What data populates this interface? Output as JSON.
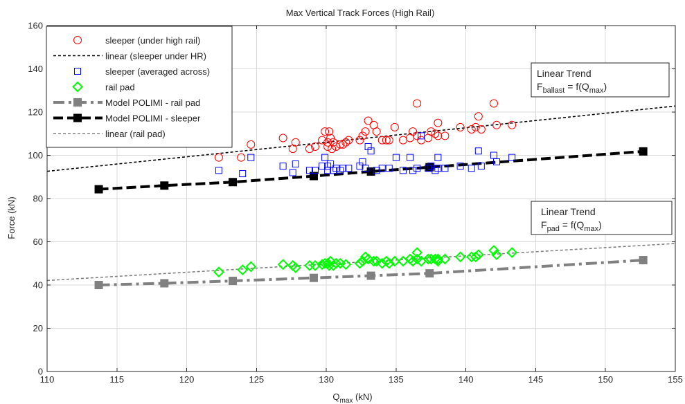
{
  "chart_data": {
    "type": "scatter",
    "title": "Max Vertical Track Forces (High Rail)",
    "xlabel": {
      "base": "Q",
      "sub": "max",
      "rest": " (kN)"
    },
    "ylabel": "Force (kN)",
    "xlim": [
      110,
      155
    ],
    "ylim": [
      0,
      160
    ],
    "xticks": [
      110,
      115,
      120,
      125,
      130,
      135,
      140,
      145,
      150,
      155
    ],
    "yticks": [
      0,
      20,
      40,
      60,
      80,
      100,
      120,
      140,
      160
    ],
    "grid": true,
    "legend_position": "top-left",
    "series": [
      {
        "name": "sleeper (under high rail)",
        "kind": "markers",
        "marker": "circle",
        "color": "#ff0000",
        "points": [
          [
            122.3,
            99
          ],
          [
            123.9,
            99
          ],
          [
            124.6,
            105
          ],
          [
            126.9,
            108
          ],
          [
            127.6,
            103
          ],
          [
            127.8,
            106
          ],
          [
            128.8,
            103
          ],
          [
            129.2,
            104
          ],
          [
            129.7,
            107
          ],
          [
            129.9,
            111
          ],
          [
            130.1,
            104
          ],
          [
            130.1,
            106
          ],
          [
            130.2,
            111
          ],
          [
            130.3,
            108
          ],
          [
            130.4,
            103
          ],
          [
            130.5,
            106
          ],
          [
            130.7,
            104
          ],
          [
            131,
            105
          ],
          [
            131.2,
            105
          ],
          [
            131.4,
            106
          ],
          [
            131.6,
            107
          ],
          [
            132.4,
            107
          ],
          [
            132.6,
            109
          ],
          [
            132.8,
            111
          ],
          [
            133,
            116
          ],
          [
            133.4,
            114
          ],
          [
            133.6,
            111
          ],
          [
            134,
            107
          ],
          [
            134.3,
            107
          ],
          [
            134.5,
            107
          ],
          [
            134.9,
            113
          ],
          [
            135.5,
            107
          ],
          [
            136,
            108
          ],
          [
            136.2,
            111
          ],
          [
            136.5,
            109
          ],
          [
            136.5,
            124
          ],
          [
            136.8,
            107
          ],
          [
            137.3,
            108
          ],
          [
            137.5,
            111
          ],
          [
            137.8,
            110
          ],
          [
            138,
            109
          ],
          [
            138,
            115
          ],
          [
            138.5,
            109
          ],
          [
            139.6,
            113
          ],
          [
            140.4,
            112
          ],
          [
            140.7,
            113
          ],
          [
            140.9,
            118
          ],
          [
            141.1,
            112
          ],
          [
            142,
            124
          ],
          [
            142.2,
            114
          ],
          [
            143.3,
            114
          ]
        ]
      },
      {
        "name": "linear (sleeper under HR)",
        "kind": "line",
        "color": "#000000",
        "dash": "4 3",
        "width": 1.6,
        "points": [
          [
            110,
            92.6
          ],
          [
            155,
            122.8
          ]
        ]
      },
      {
        "name": "sleeper (averaged across)",
        "kind": "markers",
        "marker": "square",
        "color": "#0000ff",
        "points": [
          [
            122.3,
            93
          ],
          [
            124,
            91.5
          ],
          [
            124.6,
            99
          ],
          [
            126.9,
            95
          ],
          [
            127.6,
            92
          ],
          [
            127.8,
            96
          ],
          [
            128.8,
            93
          ],
          [
            129.2,
            93
          ],
          [
            129.7,
            95
          ],
          [
            129.9,
            99
          ],
          [
            130.1,
            93
          ],
          [
            130.1,
            95
          ],
          [
            130.3,
            96
          ],
          [
            130.5,
            93
          ],
          [
            130.7,
            94
          ],
          [
            131,
            93
          ],
          [
            131.2,
            94
          ],
          [
            131.6,
            94
          ],
          [
            132.4,
            95
          ],
          [
            132.6,
            97
          ],
          [
            132.8,
            94
          ],
          [
            133,
            104
          ],
          [
            133.2,
            102
          ],
          [
            133.6,
            93
          ],
          [
            134,
            94
          ],
          [
            134.5,
            94
          ],
          [
            135,
            99
          ],
          [
            135.5,
            93
          ],
          [
            136,
            99
          ],
          [
            136.2,
            93
          ],
          [
            136.5,
            94
          ],
          [
            136.8,
            109
          ],
          [
            137.3,
            94
          ],
          [
            137.5,
            95
          ],
          [
            137.8,
            93
          ],
          [
            138,
            94
          ],
          [
            138,
            99
          ],
          [
            138.5,
            94
          ],
          [
            139.6,
            95
          ],
          [
            140.4,
            94
          ],
          [
            140.9,
            102
          ],
          [
            141.1,
            95
          ],
          [
            142,
            100
          ],
          [
            142.2,
            97
          ],
          [
            143.3,
            99
          ]
        ]
      },
      {
        "name": "rail pad",
        "kind": "markers",
        "marker": "diamond",
        "color": "#00ff00",
        "points": [
          [
            122.3,
            46
          ],
          [
            124,
            47
          ],
          [
            124.6,
            48.5
          ],
          [
            126.9,
            49.5
          ],
          [
            127.6,
            49
          ],
          [
            127.8,
            48
          ],
          [
            128.8,
            49
          ],
          [
            129.2,
            49
          ],
          [
            129.7,
            49.5
          ],
          [
            129.9,
            50
          ],
          [
            130.1,
            50
          ],
          [
            130.2,
            49
          ],
          [
            130.3,
            51
          ],
          [
            130.5,
            49
          ],
          [
            130.7,
            50
          ],
          [
            131,
            50
          ],
          [
            131.4,
            49.5
          ],
          [
            132.4,
            50
          ],
          [
            132.6,
            51
          ],
          [
            132.8,
            53
          ],
          [
            133,
            52
          ],
          [
            133.4,
            51
          ],
          [
            133.6,
            51
          ],
          [
            134,
            50
          ],
          [
            134.3,
            51
          ],
          [
            134.5,
            50
          ],
          [
            134.9,
            51
          ],
          [
            135.5,
            51
          ],
          [
            136,
            52
          ],
          [
            136.2,
            51
          ],
          [
            136.5,
            52
          ],
          [
            136.5,
            55
          ],
          [
            136.8,
            51
          ],
          [
            137.3,
            52
          ],
          [
            137.5,
            52
          ],
          [
            137.8,
            52
          ],
          [
            138,
            52
          ],
          [
            138,
            51
          ],
          [
            138.5,
            52
          ],
          [
            139.6,
            53
          ],
          [
            140.4,
            53
          ],
          [
            140.7,
            53
          ],
          [
            140.9,
            54
          ],
          [
            142,
            56
          ],
          [
            142.2,
            54
          ],
          [
            143.3,
            55
          ]
        ]
      },
      {
        "name": "Model POLIMI - rail pad",
        "kind": "line",
        "marker": "square",
        "color": "#808080",
        "dash": "16 6 4 6",
        "width": 4,
        "points": [
          [
            113.7,
            40
          ],
          [
            118.4,
            40.8
          ],
          [
            123.3,
            41.9
          ],
          [
            129.1,
            43.3
          ],
          [
            133.2,
            44.3
          ],
          [
            137.4,
            45.4
          ],
          [
            152.7,
            51.5
          ]
        ]
      },
      {
        "name": "Model POLIMI - sleeper",
        "kind": "line",
        "marker": "square",
        "color": "#000000",
        "dash": "14 6",
        "width": 4,
        "points": [
          [
            113.7,
            84.3
          ],
          [
            118.4,
            86
          ],
          [
            123.3,
            87.6
          ],
          [
            129.1,
            90.4
          ],
          [
            133.2,
            92.5
          ],
          [
            137.4,
            94.5
          ],
          [
            152.7,
            101.8
          ]
        ]
      },
      {
        "name": "linear (rail pad)",
        "kind": "line",
        "color": "#808080",
        "dash": "4 3",
        "width": 1.6,
        "points": [
          [
            110,
            42.1
          ],
          [
            155,
            59.2
          ]
        ]
      }
    ],
    "annotations": [
      {
        "lines": [
          "Linear Trend"
        ],
        "formula": {
          "lead": "F",
          "sub1": "ballast",
          "mid": " = f(Q",
          "sub2": "max",
          "tail": ")"
        }
      },
      {
        "lines": [
          "Linear Trend"
        ],
        "formula": {
          "lead": "F",
          "sub1": "pad",
          "mid": " = f(Q",
          "sub2": "max",
          "tail": ")"
        }
      }
    ]
  }
}
